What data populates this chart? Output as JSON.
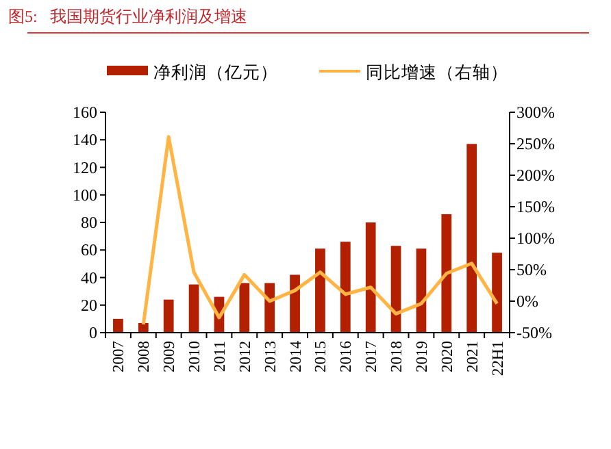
{
  "chart_data": {
    "type": "bar",
    "title": "图5:   我国期货行业净利润及增速",
    "categories": [
      "2007",
      "2008",
      "2009",
      "2010",
      "2011",
      "2012",
      "2013",
      "2014",
      "2015",
      "2016",
      "2017",
      "2018",
      "2019",
      "2020",
      "2021",
      "22H1"
    ],
    "series": [
      {
        "name": "净利润（亿元）",
        "color": "#b22000",
        "values": [
          10,
          7,
          24,
          35,
          26,
          36,
          36,
          42,
          61,
          66,
          80,
          63,
          61,
          86,
          137,
          58
        ]
      },
      {
        "name": "同比增速（右轴）",
        "type": "line",
        "axis": "y2",
        "color": "#ffb444",
        "values": [
          null,
          -37,
          261,
          46,
          -26,
          42,
          0,
          17,
          46,
          11,
          22,
          -20,
          -4,
          44,
          60,
          -4
        ]
      }
    ],
    "ylim": [
      0,
      160
    ],
    "yticks": [
      0,
      20,
      40,
      60,
      80,
      100,
      120,
      140,
      160
    ],
    "y2lim": [
      -50,
      300
    ],
    "y2ticks": [
      {
        "value": -50,
        "label": "-50%"
      },
      {
        "value": 0,
        "label": "0%"
      },
      {
        "value": 50,
        "label": "50%"
      },
      {
        "value": 100,
        "label": "100%"
      },
      {
        "value": 150,
        "label": "150%"
      },
      {
        "value": 200,
        "label": "200%"
      },
      {
        "value": 250,
        "label": "250%"
      },
      {
        "value": 300,
        "label": "300%"
      }
    ],
    "grid": false,
    "legend": "top"
  }
}
